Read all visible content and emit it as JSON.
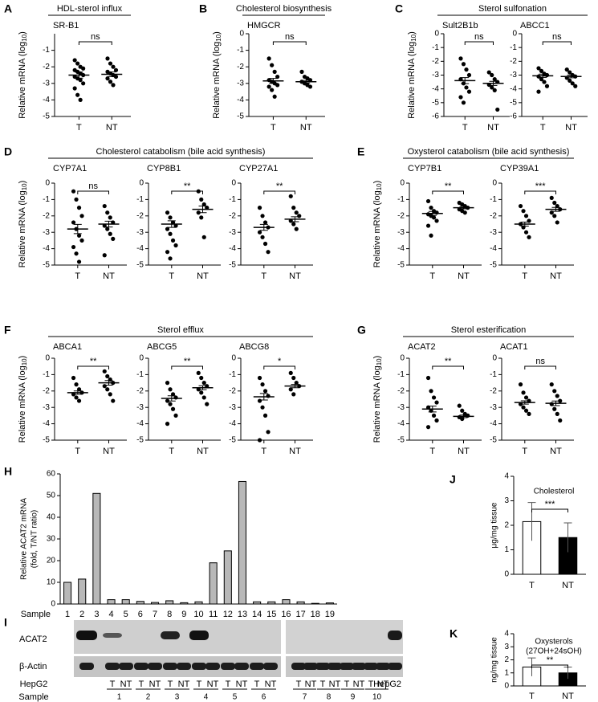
{
  "chart_data": [
    {
      "type": "dotplot",
      "panel": "A",
      "title": "HDL-sterol influx",
      "ylabel": {
        "text": "Relative mRNA (log",
        "sub": "10",
        "close": ")"
      },
      "ylim": [
        -5,
        0
      ],
      "yticks": [
        -1,
        -2,
        -3,
        -4,
        -5
      ],
      "plots": [
        {
          "name": "SR-B1",
          "sig": "ns",
          "series": [
            {
              "name": "T",
              "values": [
                -1.6,
                -1.8,
                -2.0,
                -2.1,
                -2.2,
                -2.3,
                -2.4,
                -2.5,
                -2.6,
                -2.7,
                -2.8,
                -3.0,
                -3.3,
                -3.7,
                -4.0
              ],
              "mean": -2.5,
              "sem": 0.18
            },
            {
              "name": "NT",
              "values": [
                -1.5,
                -1.8,
                -2.0,
                -2.2,
                -2.3,
                -2.4,
                -2.5,
                -2.6,
                -2.7,
                -2.9,
                -3.1
              ],
              "mean": -2.45,
              "sem": 0.14
            }
          ]
        }
      ]
    },
    {
      "type": "dotplot",
      "panel": "B",
      "title": "Cholesterol biosynthesis",
      "ylabel": {
        "text": "Relative mRNA (log",
        "sub": "10",
        "close": ")"
      },
      "ylim": [
        -5,
        0
      ],
      "yticks": [
        0,
        -1,
        -2,
        -3,
        -4,
        -5
      ],
      "plots": [
        {
          "name": "HMGCR",
          "sig": "ns",
          "series": [
            {
              "name": "T",
              "values": [
                -1.5,
                -1.9,
                -2.3,
                -2.6,
                -2.8,
                -2.9,
                -3.0,
                -3.1,
                -3.2,
                -3.4,
                -3.8
              ],
              "mean": -2.85,
              "sem": 0.15
            },
            {
              "name": "NT",
              "values": [
                -2.3,
                -2.6,
                -2.7,
                -2.8,
                -2.9,
                -3.0,
                -3.1,
                -3.2
              ],
              "mean": -2.9,
              "sem": 0.08
            }
          ]
        }
      ]
    },
    {
      "type": "dotplot",
      "panel": "C",
      "title": "Sterol sulfonation",
      "ylabel": {
        "text": "Relative mRNA (log",
        "sub": "10",
        "close": ")"
      },
      "ylim": [
        -6,
        0
      ],
      "yticks": [
        0,
        -1,
        -2,
        -3,
        -4,
        -5,
        -6
      ],
      "plots": [
        {
          "name": "Sult2B1b",
          "sig": "ns",
          "series": [
            {
              "name": "T",
              "values": [
                -1.8,
                -2.2,
                -2.6,
                -3.0,
                -3.3,
                -3.6,
                -3.9,
                -4.2,
                -4.6,
                -5.0
              ],
              "mean": -3.4,
              "sem": 0.22
            },
            {
              "name": "NT",
              "values": [
                -2.8,
                -3.0,
                -3.3,
                -3.5,
                -3.7,
                -3.9,
                -4.1,
                -5.5
              ],
              "mean": -3.6,
              "sem": 0.15
            }
          ]
        },
        {
          "name": "ABCC1",
          "sig": "ns",
          "series": [
            {
              "name": "T",
              "values": [
                -2.5,
                -2.7,
                -2.9,
                -3.0,
                -3.1,
                -3.3,
                -3.5,
                -3.8,
                -4.2
              ],
              "mean": -3.05,
              "sem": 0.12
            },
            {
              "name": "NT",
              "values": [
                -2.6,
                -2.8,
                -3.0,
                -3.1,
                -3.2,
                -3.4,
                -3.6,
                -3.8
              ],
              "mean": -3.1,
              "sem": 0.1
            }
          ]
        }
      ]
    },
    {
      "type": "dotplot",
      "panel": "D",
      "title": "Cholesterol catabolism (bile acid synthesis)",
      "ylabel": {
        "text": "Relative mRNA (log",
        "sub": "10",
        "close": ")"
      },
      "ylim": [
        -5,
        0
      ],
      "yticks": [
        0,
        -1,
        -2,
        -3,
        -4,
        -5
      ],
      "plots": [
        {
          "name": "CYP7A1",
          "sig": "ns",
          "series": [
            {
              "name": "T",
              "values": [
                -0.5,
                -1.0,
                -1.5,
                -2.0,
                -2.4,
                -2.8,
                -3.2,
                -3.5,
                -3.9,
                -4.3,
                -4.8
              ],
              "mean": -2.8,
              "sem": 0.28
            },
            {
              "name": "NT",
              "values": [
                -1.4,
                -1.8,
                -2.1,
                -2.4,
                -2.6,
                -2.8,
                -3.1,
                -3.4,
                -4.4
              ],
              "mean": -2.5,
              "sem": 0.18
            }
          ]
        },
        {
          "name": "CYP8B1",
          "sig": "**",
          "series": [
            {
              "name": "T",
              "values": [
                -1.8,
                -2.1,
                -2.4,
                -2.6,
                -2.8,
                -3.1,
                -3.5,
                -3.8,
                -4.2,
                -4.6
              ],
              "mean": -2.5,
              "sem": 0.2
            },
            {
              "name": "NT",
              "values": [
                -0.5,
                -1.0,
                -1.3,
                -1.5,
                -1.8,
                -2.1,
                -3.3
              ],
              "mean": -1.6,
              "sem": 0.2
            }
          ]
        },
        {
          "name": "CYP27A1",
          "sig": "**",
          "series": [
            {
              "name": "T",
              "values": [
                -1.5,
                -2.0,
                -2.4,
                -2.7,
                -3.0,
                -3.3,
                -3.7,
                -4.2
              ],
              "mean": -2.7,
              "sem": 0.18
            },
            {
              "name": "NT",
              "values": [
                -0.8,
                -1.5,
                -1.8,
                -2.0,
                -2.3,
                -2.5,
                -2.8
              ],
              "mean": -2.2,
              "sem": 0.15
            }
          ]
        }
      ]
    },
    {
      "type": "dotplot",
      "panel": "E",
      "title": "Oxysterol catabolism (bile acid synthesis)",
      "ylabel": {
        "text": "Relative mRNA (log",
        "sub": "10",
        "close": ")"
      },
      "ylim": [
        -5,
        0
      ],
      "yticks": [
        0,
        -1,
        -2,
        -3,
        -4,
        -5
      ],
      "plots": [
        {
          "name": "CYP7B1",
          "sig": "**",
          "series": [
            {
              "name": "T",
              "values": [
                -1.1,
                -1.5,
                -1.7,
                -1.8,
                -1.9,
                -2.0,
                -2.1,
                -2.3,
                -2.6,
                -3.2
              ],
              "mean": -1.85,
              "sem": 0.12
            },
            {
              "name": "NT",
              "values": [
                -1.2,
                -1.3,
                -1.4,
                -1.5,
                -1.6,
                -1.7,
                -1.8
              ],
              "mean": -1.5,
              "sem": 0.07
            }
          ]
        },
        {
          "name": "CYP39A1",
          "sig": "***",
          "series": [
            {
              "name": "T",
              "values": [
                -1.4,
                -1.7,
                -2.0,
                -2.3,
                -2.5,
                -2.7,
                -3.0,
                -3.3
              ],
              "mean": -2.5,
              "sem": 0.12
            },
            {
              "name": "NT",
              "values": [
                -0.9,
                -1.2,
                -1.4,
                -1.6,
                -1.8,
                -2.0,
                -2.4
              ],
              "mean": -1.6,
              "sem": 0.12
            }
          ]
        }
      ]
    },
    {
      "type": "dotplot",
      "panel": "F",
      "title": "Sterol efflux",
      "ylabel": {
        "text": "Relative mRNA (log",
        "sub": "10",
        "close": ")"
      },
      "ylim": [
        -5,
        0
      ],
      "yticks": [
        0,
        -1,
        -2,
        -3,
        -4,
        -5
      ],
      "plots": [
        {
          "name": "ABCA1",
          "sig": "**",
          "series": [
            {
              "name": "T",
              "values": [
                -1.2,
                -1.6,
                -1.9,
                -2.1,
                -2.2,
                -2.4,
                -2.6
              ],
              "mean": -2.1,
              "sem": 0.1
            },
            {
              "name": "NT",
              "values": [
                -0.8,
                -1.1,
                -1.3,
                -1.5,
                -1.7,
                -1.9,
                -2.2,
                -2.6
              ],
              "mean": -1.5,
              "sem": 0.14
            }
          ]
        },
        {
          "name": "ABCG5",
          "sig": "**",
          "series": [
            {
              "name": "T",
              "values": [
                -1.5,
                -1.9,
                -2.2,
                -2.4,
                -2.6,
                -2.8,
                -3.1,
                -3.5,
                -4.0
              ],
              "mean": -2.45,
              "sem": 0.16
            },
            {
              "name": "NT",
              "values": [
                -0.9,
                -1.2,
                -1.5,
                -1.7,
                -1.9,
                -2.1,
                -2.4,
                -2.8
              ],
              "mean": -1.8,
              "sem": 0.12
            }
          ]
        },
        {
          "name": "ABCG8",
          "sig": "*",
          "series": [
            {
              "name": "T",
              "values": [
                -1.2,
                -1.6,
                -2.0,
                -2.3,
                -2.6,
                -3.0,
                -3.5,
                -4.5,
                -5.0
              ],
              "mean": -2.35,
              "sem": 0.2
            },
            {
              "name": "NT",
              "values": [
                -0.9,
                -1.2,
                -1.5,
                -1.7,
                -1.9,
                -2.2
              ],
              "mean": -1.7,
              "sem": 0.1
            }
          ]
        }
      ]
    },
    {
      "type": "dotplot",
      "panel": "G",
      "title": "Sterol esterification",
      "ylabel": {
        "text": "Relative mRNA (log",
        "sub": "10",
        "close": ")"
      },
      "ylim": [
        -5,
        0
      ],
      "yticks": [
        0,
        -1,
        -2,
        -3,
        -4,
        -5
      ],
      "plots": [
        {
          "name": "ACAT2",
          "sig": "**",
          "series": [
            {
              "name": "T",
              "values": [
                -1.2,
                -2.0,
                -2.4,
                -2.7,
                -3.0,
                -3.2,
                -3.5,
                -3.8,
                -4.2
              ],
              "mean": -3.1,
              "sem": 0.18
            },
            {
              "name": "NT",
              "values": [
                -2.9,
                -3.2,
                -3.4,
                -3.5,
                -3.6,
                -3.7
              ],
              "mean": -3.55,
              "sem": 0.08
            }
          ]
        },
        {
          "name": "ACAT1",
          "sig": "ns",
          "series": [
            {
              "name": "T",
              "values": [
                -1.6,
                -2.1,
                -2.4,
                -2.6,
                -2.8,
                -3.0,
                -3.2,
                -3.4
              ],
              "mean": -2.7,
              "sem": 0.1
            },
            {
              "name": "NT",
              "values": [
                -1.6,
                -2.0,
                -2.3,
                -2.6,
                -2.8,
                -3.1,
                -3.4,
                -3.8
              ],
              "mean": -2.75,
              "sem": 0.14
            }
          ]
        }
      ]
    },
    {
      "type": "bar",
      "panel": "H",
      "ylabel": [
        "Relative ACAT2 mRNA",
        "(fold, T/NT ratio)"
      ],
      "xlabel": "Sample",
      "categories": [
        1,
        2,
        3,
        4,
        5,
        6,
        7,
        8,
        9,
        10,
        11,
        12,
        13,
        14,
        15,
        16,
        17,
        18,
        19
      ],
      "values": [
        10,
        11.5,
        51,
        2,
        2,
        1.2,
        0.7,
        1.5,
        0.6,
        1,
        19,
        24.5,
        56.5,
        1,
        1,
        2,
        1,
        0.3,
        0.5
      ],
      "color": "#b8b8b8",
      "ylim": [
        0,
        60
      ],
      "yticks": [
        0,
        10,
        20,
        30,
        40,
        50,
        60
      ]
    },
    {
      "type": "bar",
      "panel": "J",
      "title": [
        "Cholesterol"
      ],
      "ylabel": [
        "μg/mg tissue"
      ],
      "sig": "***",
      "categories": [
        "T",
        "NT"
      ],
      "values": [
        2.15,
        1.5
      ],
      "errors": [
        0.78,
        0.6
      ],
      "colors": [
        "#ffffff",
        "#000000"
      ],
      "ylim": [
        0,
        4
      ],
      "yticks": [
        0,
        1,
        2,
        3,
        4
      ]
    },
    {
      "type": "bar",
      "panel": "K",
      "title": [
        "Oxysterols",
        "(27OH+24sOH)"
      ],
      "ylabel": [
        "ng/mg tissue"
      ],
      "sig": "**",
      "categories": [
        "T",
        "NT"
      ],
      "values": [
        1.45,
        1.0
      ],
      "errors": [
        0.7,
        0.45
      ],
      "colors": [
        "#ffffff",
        "#000000"
      ],
      "ylim": [
        0,
        4
      ],
      "yticks": [
        0,
        1,
        2,
        3,
        4
      ]
    }
  ],
  "blot": {
    "panel": "I",
    "rows": [
      "ACAT2",
      "β-Actin"
    ],
    "control": "HepG2",
    "pair": [
      "T",
      "NT"
    ],
    "sample_label": "Sample",
    "samples": [
      1,
      2,
      3,
      4,
      5,
      6,
      7,
      8,
      9,
      10
    ]
  }
}
